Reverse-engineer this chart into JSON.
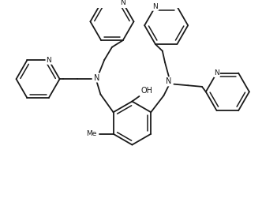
{
  "background_color": "#ffffff",
  "line_color": "#1a1a1a",
  "line_width": 1.3,
  "figsize": [
    3.51,
    2.7
  ],
  "dpi": 100,
  "xlim": [
    0.0,
    10.5
  ],
  "ylim": [
    0.0,
    8.0
  ]
}
